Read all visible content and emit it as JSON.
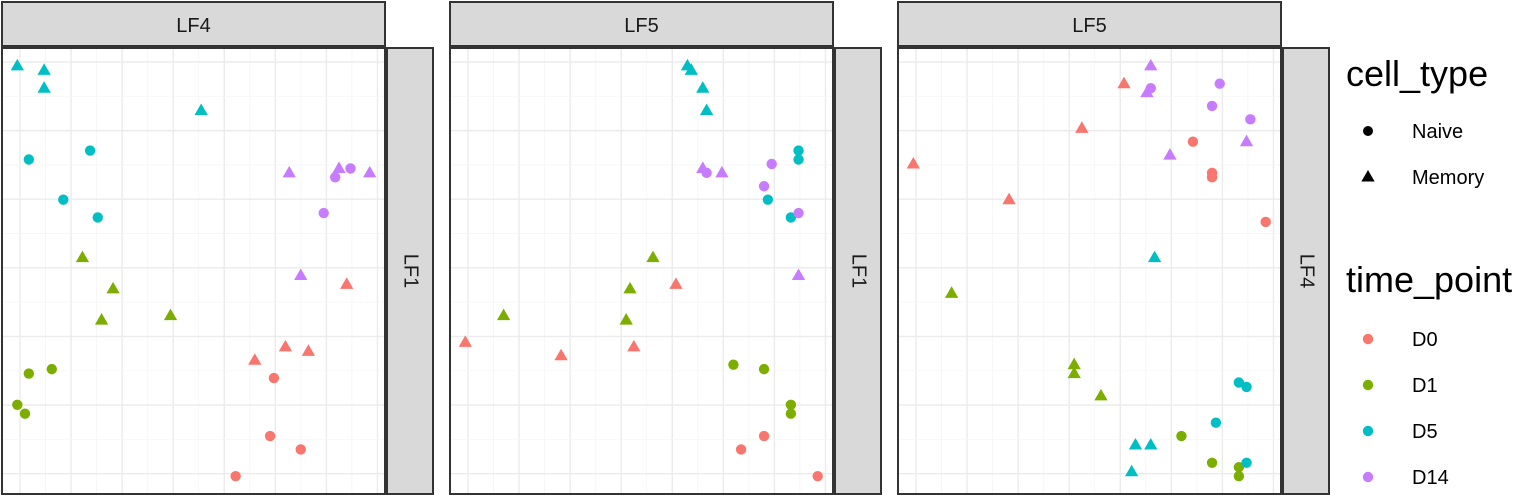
{
  "colors": {
    "D0": "#F8766D",
    "D1": "#7CAE00",
    "D5": "#00BFC4",
    "D14": "#C77CFF"
  },
  "legend": {
    "shape_title": "cell_type",
    "shape_items": [
      {
        "label": "Naive",
        "shape": "circle"
      },
      {
        "label": "Memory",
        "shape": "triangle"
      }
    ],
    "color_title": "time_point",
    "color_items": [
      "D0",
      "D1",
      "D5",
      "D14"
    ]
  },
  "chart_data": [
    {
      "type": "scatter",
      "top_strip": "LF4",
      "right_strip": "LF1",
      "xlim": [
        0,
        1
      ],
      "ylim": [
        0,
        1
      ],
      "points": [
        {
          "x": 0.04,
          "y": 0.96,
          "cell_type": "Memory",
          "time_point": "D5"
        },
        {
          "x": 0.11,
          "y": 0.95,
          "cell_type": "Memory",
          "time_point": "D5"
        },
        {
          "x": 0.11,
          "y": 0.91,
          "cell_type": "Memory",
          "time_point": "D5"
        },
        {
          "x": 0.52,
          "y": 0.86,
          "cell_type": "Memory",
          "time_point": "D5"
        },
        {
          "x": 0.23,
          "y": 0.77,
          "cell_type": "Naive",
          "time_point": "D5"
        },
        {
          "x": 0.07,
          "y": 0.75,
          "cell_type": "Naive",
          "time_point": "D5"
        },
        {
          "x": 0.16,
          "y": 0.66,
          "cell_type": "Naive",
          "time_point": "D5"
        },
        {
          "x": 0.25,
          "y": 0.62,
          "cell_type": "Naive",
          "time_point": "D5"
        },
        {
          "x": 0.75,
          "y": 0.72,
          "cell_type": "Memory",
          "time_point": "D14"
        },
        {
          "x": 0.88,
          "y": 0.73,
          "cell_type": "Memory",
          "time_point": "D14"
        },
        {
          "x": 0.91,
          "y": 0.73,
          "cell_type": "Naive",
          "time_point": "D14"
        },
        {
          "x": 0.96,
          "y": 0.72,
          "cell_type": "Memory",
          "time_point": "D14"
        },
        {
          "x": 0.87,
          "y": 0.71,
          "cell_type": "Naive",
          "time_point": "D14"
        },
        {
          "x": 0.84,
          "y": 0.63,
          "cell_type": "Naive",
          "time_point": "D14"
        },
        {
          "x": 0.78,
          "y": 0.49,
          "cell_type": "Memory",
          "time_point": "D14"
        },
        {
          "x": 0.21,
          "y": 0.53,
          "cell_type": "Memory",
          "time_point": "D1"
        },
        {
          "x": 0.29,
          "y": 0.46,
          "cell_type": "Memory",
          "time_point": "D1"
        },
        {
          "x": 0.26,
          "y": 0.39,
          "cell_type": "Memory",
          "time_point": "D1"
        },
        {
          "x": 0.44,
          "y": 0.4,
          "cell_type": "Memory",
          "time_point": "D1"
        },
        {
          "x": 0.13,
          "y": 0.28,
          "cell_type": "Naive",
          "time_point": "D1"
        },
        {
          "x": 0.07,
          "y": 0.27,
          "cell_type": "Naive",
          "time_point": "D1"
        },
        {
          "x": 0.04,
          "y": 0.2,
          "cell_type": "Naive",
          "time_point": "D1"
        },
        {
          "x": 0.06,
          "y": 0.18,
          "cell_type": "Naive",
          "time_point": "D1"
        },
        {
          "x": 0.9,
          "y": 0.47,
          "cell_type": "Memory",
          "time_point": "D0"
        },
        {
          "x": 0.74,
          "y": 0.33,
          "cell_type": "Memory",
          "time_point": "D0"
        },
        {
          "x": 0.8,
          "y": 0.32,
          "cell_type": "Memory",
          "time_point": "D0"
        },
        {
          "x": 0.66,
          "y": 0.3,
          "cell_type": "Memory",
          "time_point": "D0"
        },
        {
          "x": 0.71,
          "y": 0.26,
          "cell_type": "Naive",
          "time_point": "D0"
        },
        {
          "x": 0.7,
          "y": 0.13,
          "cell_type": "Naive",
          "time_point": "D0"
        },
        {
          "x": 0.78,
          "y": 0.1,
          "cell_type": "Naive",
          "time_point": "D0"
        },
        {
          "x": 0.61,
          "y": 0.04,
          "cell_type": "Naive",
          "time_point": "D0"
        }
      ]
    },
    {
      "type": "scatter",
      "top_strip": "LF5",
      "right_strip": "LF1",
      "xlim": [
        0,
        1
      ],
      "ylim": [
        0,
        1
      ],
      "points": [
        {
          "x": 0.62,
          "y": 0.96,
          "cell_type": "Memory",
          "time_point": "D5"
        },
        {
          "x": 0.63,
          "y": 0.95,
          "cell_type": "Memory",
          "time_point": "D5"
        },
        {
          "x": 0.66,
          "y": 0.91,
          "cell_type": "Memory",
          "time_point": "D5"
        },
        {
          "x": 0.67,
          "y": 0.86,
          "cell_type": "Memory",
          "time_point": "D5"
        },
        {
          "x": 0.91,
          "y": 0.77,
          "cell_type": "Naive",
          "time_point": "D5"
        },
        {
          "x": 0.91,
          "y": 0.75,
          "cell_type": "Naive",
          "time_point": "D5"
        },
        {
          "x": 0.83,
          "y": 0.66,
          "cell_type": "Naive",
          "time_point": "D5"
        },
        {
          "x": 0.89,
          "y": 0.62,
          "cell_type": "Naive",
          "time_point": "D5"
        },
        {
          "x": 0.66,
          "y": 0.73,
          "cell_type": "Memory",
          "time_point": "D14"
        },
        {
          "x": 0.67,
          "y": 0.72,
          "cell_type": "Naive",
          "time_point": "D14"
        },
        {
          "x": 0.71,
          "y": 0.72,
          "cell_type": "Memory",
          "time_point": "D14"
        },
        {
          "x": 0.84,
          "y": 0.74,
          "cell_type": "Naive",
          "time_point": "D14"
        },
        {
          "x": 0.82,
          "y": 0.69,
          "cell_type": "Naive",
          "time_point": "D14"
        },
        {
          "x": 0.91,
          "y": 0.63,
          "cell_type": "Naive",
          "time_point": "D14"
        },
        {
          "x": 0.91,
          "y": 0.49,
          "cell_type": "Memory",
          "time_point": "D14"
        },
        {
          "x": 0.53,
          "y": 0.53,
          "cell_type": "Memory",
          "time_point": "D1"
        },
        {
          "x": 0.47,
          "y": 0.46,
          "cell_type": "Memory",
          "time_point": "D1"
        },
        {
          "x": 0.46,
          "y": 0.39,
          "cell_type": "Memory",
          "time_point": "D1"
        },
        {
          "x": 0.14,
          "y": 0.4,
          "cell_type": "Memory",
          "time_point": "D1"
        },
        {
          "x": 0.74,
          "y": 0.29,
          "cell_type": "Naive",
          "time_point": "D1"
        },
        {
          "x": 0.82,
          "y": 0.28,
          "cell_type": "Naive",
          "time_point": "D1"
        },
        {
          "x": 0.89,
          "y": 0.2,
          "cell_type": "Naive",
          "time_point": "D1"
        },
        {
          "x": 0.89,
          "y": 0.18,
          "cell_type": "Naive",
          "time_point": "D1"
        },
        {
          "x": 0.59,
          "y": 0.47,
          "cell_type": "Memory",
          "time_point": "D0"
        },
        {
          "x": 0.04,
          "y": 0.34,
          "cell_type": "Memory",
          "time_point": "D0"
        },
        {
          "x": 0.29,
          "y": 0.31,
          "cell_type": "Memory",
          "time_point": "D0"
        },
        {
          "x": 0.48,
          "y": 0.33,
          "cell_type": "Memory",
          "time_point": "D0"
        },
        {
          "x": 0.82,
          "y": 0.13,
          "cell_type": "Naive",
          "time_point": "D0"
        },
        {
          "x": 0.76,
          "y": 0.1,
          "cell_type": "Naive",
          "time_point": "D0"
        },
        {
          "x": 0.96,
          "y": 0.04,
          "cell_type": "Naive",
          "time_point": "D0"
        }
      ]
    },
    {
      "type": "scatter",
      "top_strip": "LF5",
      "right_strip": "LF4",
      "xlim": [
        0,
        1
      ],
      "ylim": [
        0,
        1
      ],
      "points": [
        {
          "x": 0.66,
          "y": 0.96,
          "cell_type": "Memory",
          "time_point": "D14"
        },
        {
          "x": 0.66,
          "y": 0.91,
          "cell_type": "Naive",
          "time_point": "D14"
        },
        {
          "x": 0.65,
          "y": 0.9,
          "cell_type": "Memory",
          "time_point": "D14"
        },
        {
          "x": 0.84,
          "y": 0.92,
          "cell_type": "Naive",
          "time_point": "D14"
        },
        {
          "x": 0.82,
          "y": 0.87,
          "cell_type": "Naive",
          "time_point": "D14"
        },
        {
          "x": 0.92,
          "y": 0.84,
          "cell_type": "Naive",
          "time_point": "D14"
        },
        {
          "x": 0.91,
          "y": 0.79,
          "cell_type": "Memory",
          "time_point": "D14"
        },
        {
          "x": 0.71,
          "y": 0.76,
          "cell_type": "Memory",
          "time_point": "D14"
        },
        {
          "x": 0.59,
          "y": 0.92,
          "cell_type": "Memory",
          "time_point": "D0"
        },
        {
          "x": 0.48,
          "y": 0.82,
          "cell_type": "Memory",
          "time_point": "D0"
        },
        {
          "x": 0.77,
          "y": 0.79,
          "cell_type": "Naive",
          "time_point": "D0"
        },
        {
          "x": 0.82,
          "y": 0.72,
          "cell_type": "Naive",
          "time_point": "D0"
        },
        {
          "x": 0.82,
          "y": 0.71,
          "cell_type": "Naive",
          "time_point": "D0"
        },
        {
          "x": 0.04,
          "y": 0.74,
          "cell_type": "Memory",
          "time_point": "D0"
        },
        {
          "x": 0.29,
          "y": 0.66,
          "cell_type": "Memory",
          "time_point": "D0"
        },
        {
          "x": 0.96,
          "y": 0.61,
          "cell_type": "Naive",
          "time_point": "D0"
        },
        {
          "x": 0.67,
          "y": 0.53,
          "cell_type": "Memory",
          "time_point": "D5"
        },
        {
          "x": 0.14,
          "y": 0.45,
          "cell_type": "Memory",
          "time_point": "D1"
        },
        {
          "x": 0.46,
          "y": 0.29,
          "cell_type": "Memory",
          "time_point": "D1"
        },
        {
          "x": 0.46,
          "y": 0.27,
          "cell_type": "Memory",
          "time_point": "D1"
        },
        {
          "x": 0.53,
          "y": 0.22,
          "cell_type": "Memory",
          "time_point": "D1"
        },
        {
          "x": 0.89,
          "y": 0.25,
          "cell_type": "Naive",
          "time_point": "D5"
        },
        {
          "x": 0.91,
          "y": 0.24,
          "cell_type": "Naive",
          "time_point": "D5"
        },
        {
          "x": 0.83,
          "y": 0.16,
          "cell_type": "Naive",
          "time_point": "D5"
        },
        {
          "x": 0.74,
          "y": 0.13,
          "cell_type": "Naive",
          "time_point": "D1"
        },
        {
          "x": 0.62,
          "y": 0.11,
          "cell_type": "Memory",
          "time_point": "D5"
        },
        {
          "x": 0.66,
          "y": 0.11,
          "cell_type": "Memory",
          "time_point": "D5"
        },
        {
          "x": 0.82,
          "y": 0.07,
          "cell_type": "Naive",
          "time_point": "D1"
        },
        {
          "x": 0.89,
          "y": 0.06,
          "cell_type": "Naive",
          "time_point": "D1"
        },
        {
          "x": 0.91,
          "y": 0.07,
          "cell_type": "Naive",
          "time_point": "D5"
        },
        {
          "x": 0.89,
          "y": 0.04,
          "cell_type": "Naive",
          "time_point": "D1"
        },
        {
          "x": 0.61,
          "y": 0.05,
          "cell_type": "Memory",
          "time_point": "D5"
        }
      ]
    }
  ]
}
